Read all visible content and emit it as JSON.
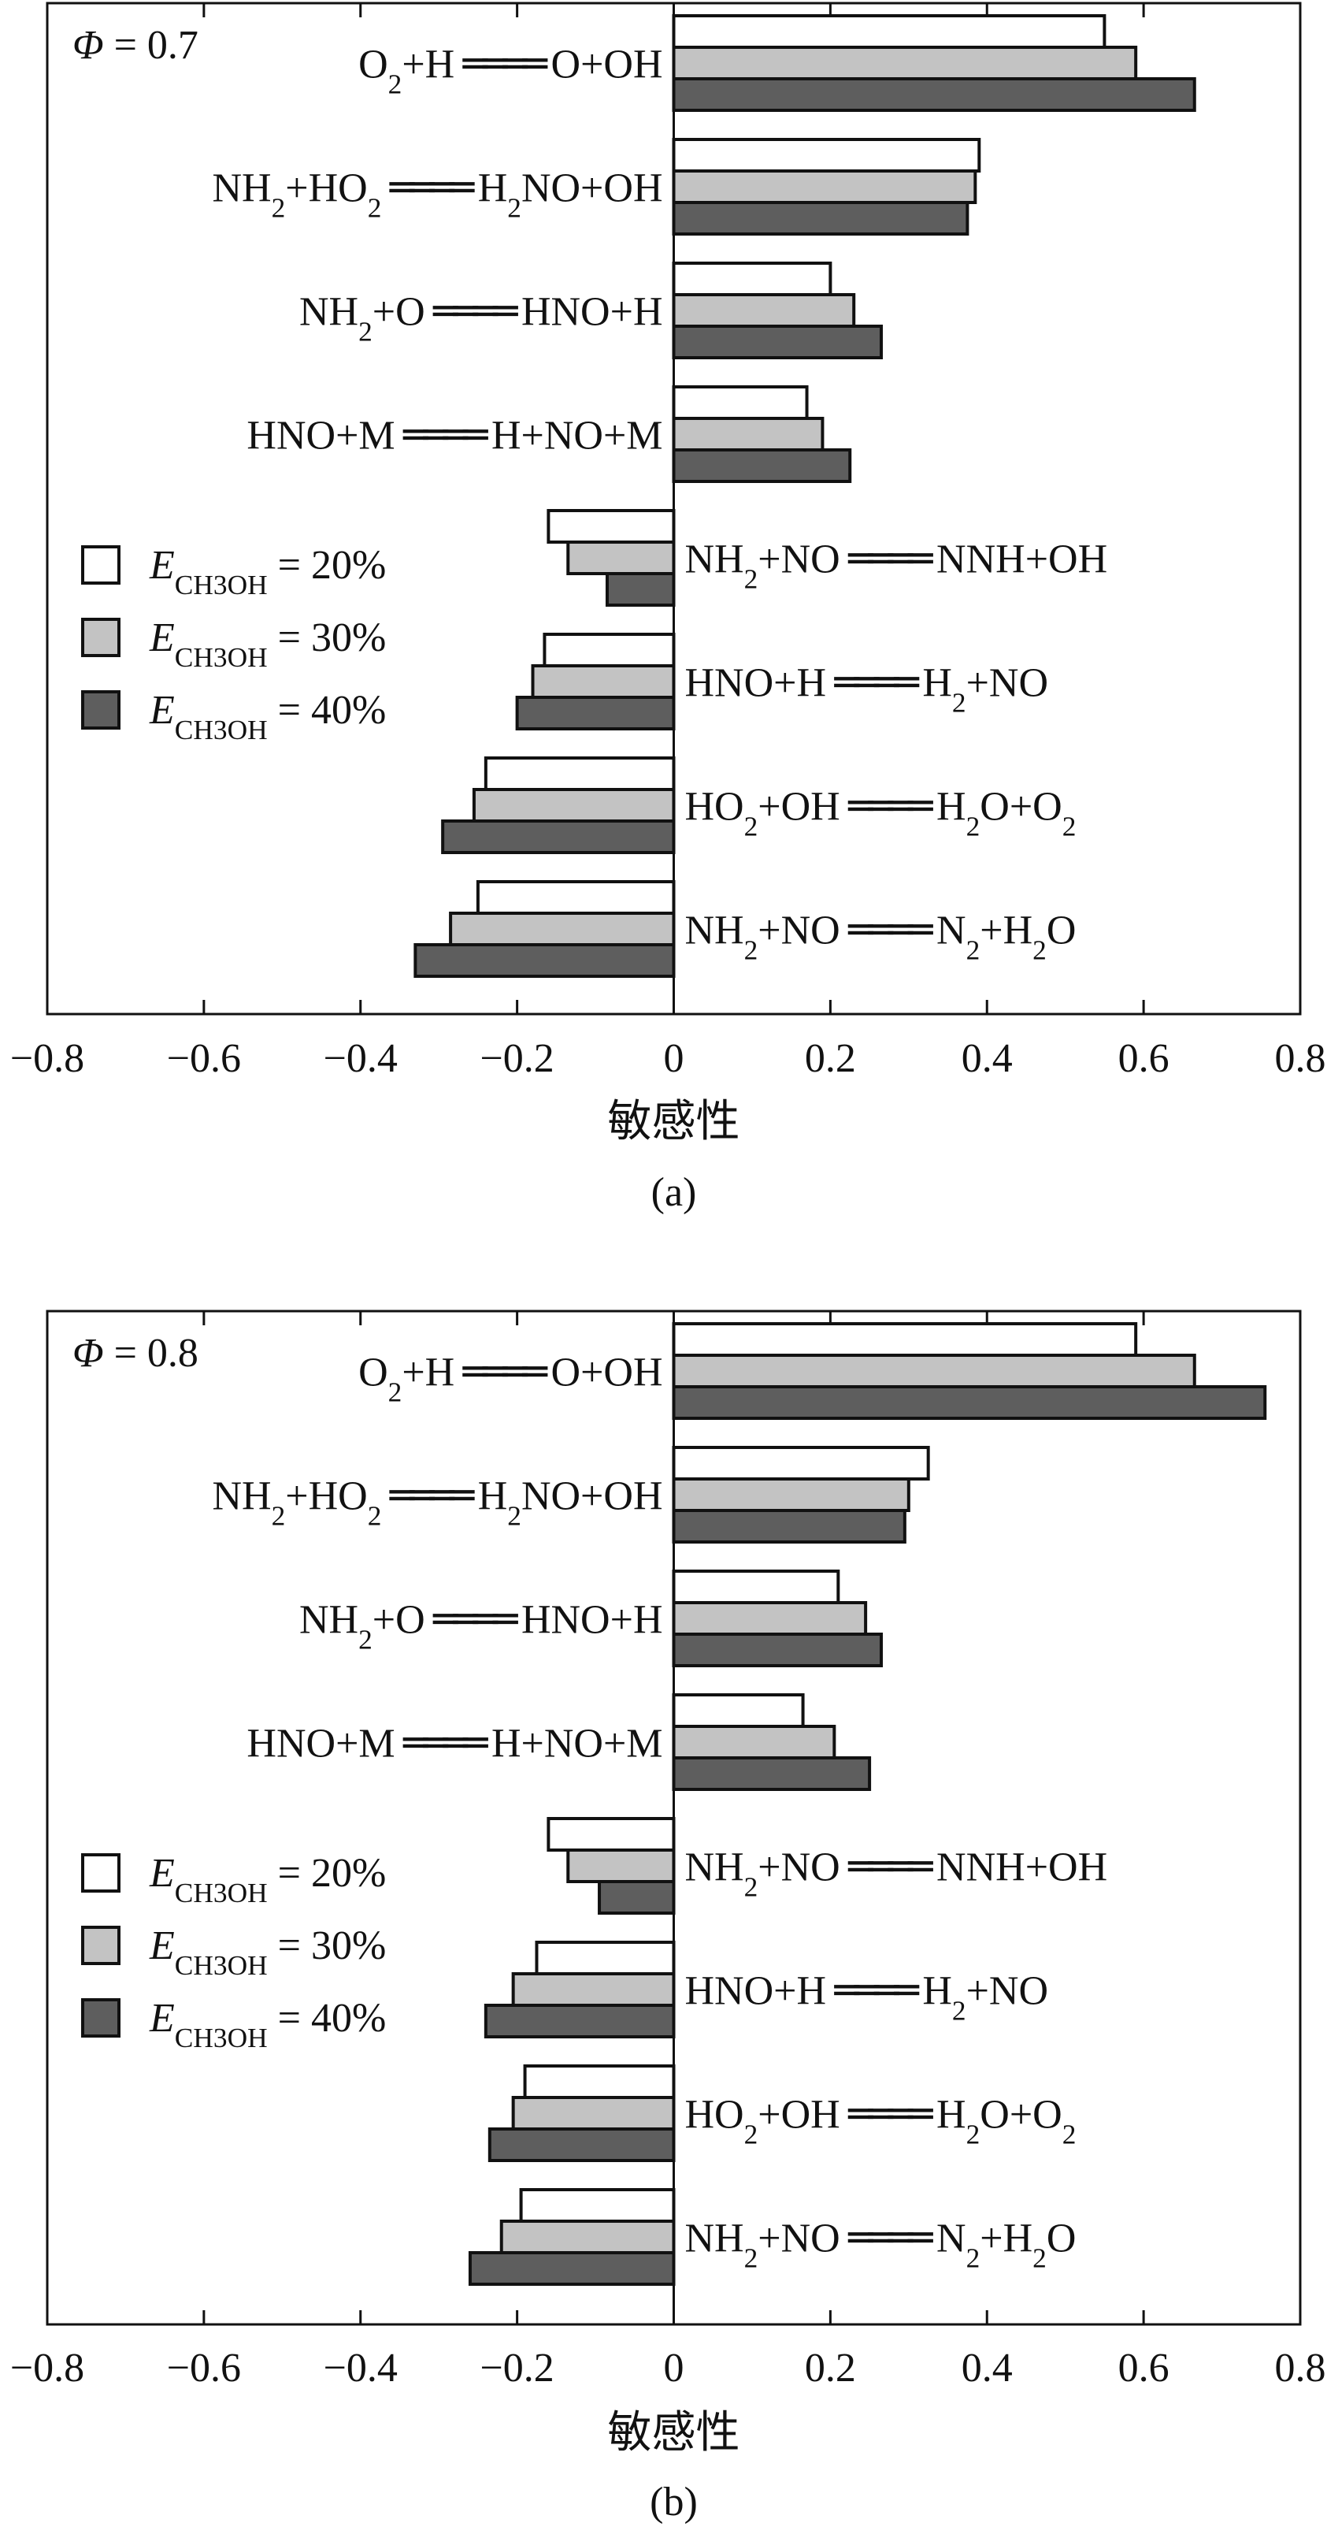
{
  "colors": {
    "s20": "#ffffff",
    "s30": "#c3c3c3",
    "s40": "#5e5e5e",
    "stroke": "#111111"
  },
  "chart_data": [
    {
      "type": "bar",
      "orientation": "horizontal",
      "panel_label": "(a)",
      "phi_label": "Φ = 0.7",
      "xlabel": "敏感性",
      "xlim": [
        -0.8,
        0.8
      ],
      "xticks": [
        "−0.8",
        "−0.6",
        "−0.4",
        "−0.2",
        "0",
        "0.2",
        "0.4",
        "0.6",
        "0.8"
      ],
      "legend_position": "left-middle",
      "categories": [
        "O2+H ═ O+OH",
        "NH2+HO2 ═ H2NO+OH",
        "NH2+O ═ HNO+H",
        "HNO+M ═ H+NO+M",
        "NH2+NO ═ NNH+OH",
        "HNO+H ═ H2+NO",
        "HO2+OH ═ H2O+O2",
        "NH2+NO ═ N2+H2O"
      ],
      "series": [
        {
          "name": "E_CH3OH = 20%",
          "color": "#ffffff",
          "values": [
            0.55,
            0.39,
            0.2,
            0.17,
            -0.16,
            -0.165,
            -0.24,
            -0.25
          ]
        },
        {
          "name": "E_CH3OH = 30%",
          "color": "#c3c3c3",
          "values": [
            0.59,
            0.385,
            0.23,
            0.19,
            -0.135,
            -0.18,
            -0.255,
            -0.285
          ]
        },
        {
          "name": "E_CH3OH = 40%",
          "color": "#5e5e5e",
          "values": [
            0.665,
            0.375,
            0.265,
            0.225,
            -0.085,
            -0.2,
            -0.295,
            -0.33
          ]
        }
      ]
    },
    {
      "type": "bar",
      "orientation": "horizontal",
      "panel_label": "(b)",
      "phi_label": "Φ = 0.8",
      "xlabel": "敏感性",
      "xlim": [
        -0.8,
        0.8
      ],
      "xticks": [
        "−0.8",
        "−0.6",
        "−0.4",
        "−0.2",
        "0",
        "0.2",
        "0.4",
        "0.6",
        "0.8"
      ],
      "legend_position": "left-middle",
      "categories": [
        "O2+H ═ O+OH",
        "NH2+HO2 ═ H2NO+OH",
        "NH2+O ═ HNO+H",
        "HNO+M ═ H+NO+M",
        "NH2+NO ═ NNH+OH",
        "HNO+H ═ H2+NO",
        "HO2+OH ═ H2O+O2",
        "NH2+NO ═ N2+H2O"
      ],
      "series": [
        {
          "name": "E_CH3OH = 20%",
          "color": "#ffffff",
          "values": [
            0.59,
            0.325,
            0.21,
            0.165,
            -0.16,
            -0.175,
            -0.19,
            -0.195
          ]
        },
        {
          "name": "E_CH3OH = 30%",
          "color": "#c3c3c3",
          "values": [
            0.665,
            0.3,
            0.245,
            0.205,
            -0.135,
            -0.205,
            -0.205,
            -0.22
          ]
        },
        {
          "name": "E_CH3OH = 40%",
          "color": "#5e5e5e",
          "values": [
            0.755,
            0.295,
            0.265,
            0.25,
            -0.095,
            -0.24,
            -0.235,
            -0.26
          ]
        }
      ]
    }
  ]
}
